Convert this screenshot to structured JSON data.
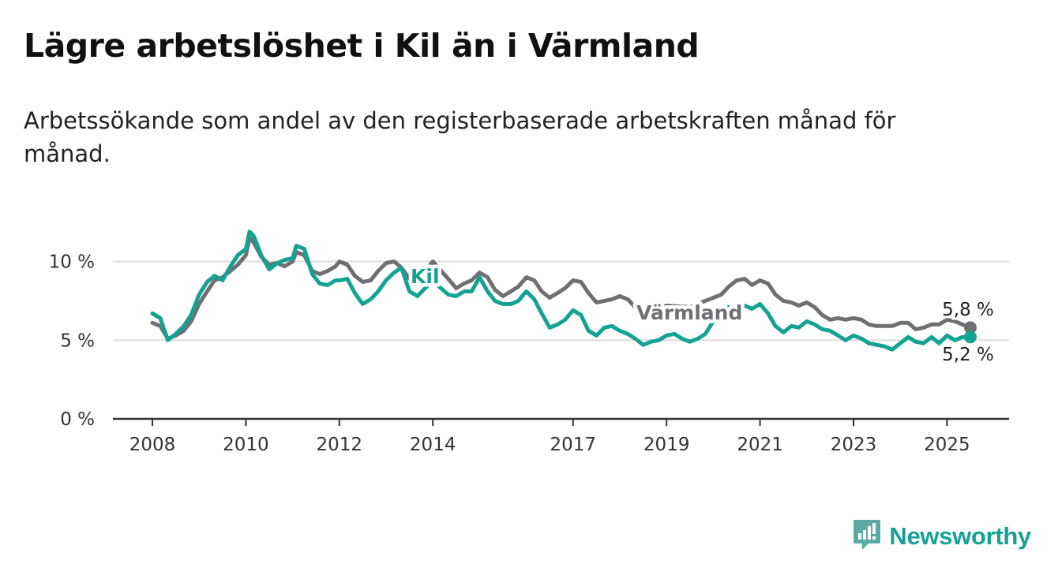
{
  "title": "Lägre arbetslöshet i Kil än i Värmland",
  "subtitle": "Arbetssökande som andel av den registerbaserade arbetskraften månad för månad.",
  "brand": {
    "name": "Newsworthy",
    "icon": "newsworthy-logo-icon",
    "color": "#17a196"
  },
  "colors": {
    "kil": "#14a393",
    "varmland": "#706f74",
    "grid": "#dddddd",
    "axis": "#333333"
  },
  "chart_data": {
    "type": "line",
    "title": "Lägre arbetslöshet i Kil än i Värmland",
    "subtitle": "Arbetssökande som andel av den registerbaserade arbetskraften månad för månad.",
    "xlabel": "",
    "ylabel": "",
    "xlim": [
      2008,
      2025.5
    ],
    "ylim": [
      0,
      10
    ],
    "y_ticks": [
      0,
      5,
      10
    ],
    "y_tick_labels": [
      "0 %",
      "5 %",
      "10 %"
    ],
    "x_ticks": [
      2008,
      2010,
      2012,
      2014,
      2017,
      2019,
      2021,
      2023,
      2025
    ],
    "x_tick_labels": [
      "2008",
      "2010",
      "2012",
      "2014",
      "2017",
      "2019",
      "2021",
      "2023",
      "2025"
    ],
    "grid": "horizontal",
    "legend": "inline labels",
    "series": [
      {
        "name": "Värmland",
        "end_label": "5,8 %",
        "points": [
          [
            2008.0,
            6.1
          ],
          [
            2008.17,
            5.9
          ],
          [
            2008.33,
            5.1
          ],
          [
            2008.5,
            5.3
          ],
          [
            2008.67,
            5.6
          ],
          [
            2008.83,
            6.2
          ],
          [
            2009.0,
            7.3
          ],
          [
            2009.17,
            8.1
          ],
          [
            2009.33,
            8.8
          ],
          [
            2009.5,
            9.0
          ],
          [
            2009.67,
            9.4
          ],
          [
            2009.83,
            9.8
          ],
          [
            2010.0,
            10.4
          ],
          [
            2010.08,
            11.5
          ],
          [
            2010.17,
            11.2
          ],
          [
            2010.33,
            10.3
          ],
          [
            2010.5,
            9.8
          ],
          [
            2010.67,
            9.9
          ],
          [
            2010.83,
            9.7
          ],
          [
            2011.0,
            10.0
          ],
          [
            2011.08,
            10.6
          ],
          [
            2011.25,
            10.4
          ],
          [
            2011.42,
            9.4
          ],
          [
            2011.58,
            9.2
          ],
          [
            2011.75,
            9.4
          ],
          [
            2011.92,
            9.7
          ],
          [
            2012.0,
            10.0
          ],
          [
            2012.17,
            9.8
          ],
          [
            2012.33,
            9.1
          ],
          [
            2012.5,
            8.7
          ],
          [
            2012.67,
            8.8
          ],
          [
            2012.83,
            9.4
          ],
          [
            2013.0,
            9.9
          ],
          [
            2013.17,
            10.0
          ],
          [
            2013.33,
            9.6
          ],
          [
            2013.5,
            8.9
          ],
          [
            2013.67,
            8.8
          ],
          [
            2014.0,
            10.0
          ],
          [
            2014.33,
            8.9
          ],
          [
            2014.5,
            8.3
          ],
          [
            2014.67,
            8.6
          ],
          [
            2014.83,
            8.8
          ],
          [
            2015.0,
            9.3
          ],
          [
            2015.17,
            9.0
          ],
          [
            2015.33,
            8.2
          ],
          [
            2015.5,
            7.8
          ],
          [
            2015.67,
            8.1
          ],
          [
            2015.83,
            8.4
          ],
          [
            2016.0,
            9.0
          ],
          [
            2016.17,
            8.8
          ],
          [
            2016.33,
            8.1
          ],
          [
            2016.5,
            7.7
          ],
          [
            2016.67,
            8.0
          ],
          [
            2016.83,
            8.3
          ],
          [
            2017.0,
            8.8
          ],
          [
            2017.17,
            8.7
          ],
          [
            2017.33,
            8.0
          ],
          [
            2017.5,
            7.4
          ],
          [
            2017.67,
            7.5
          ],
          [
            2017.83,
            7.6
          ],
          [
            2018.0,
            7.8
          ],
          [
            2018.17,
            7.6
          ],
          [
            2018.33,
            7.1
          ],
          [
            2018.5,
            6.6
          ],
          [
            2018.67,
            6.8
          ],
          [
            2018.83,
            7.0
          ],
          [
            2019.0,
            7.2
          ],
          [
            2019.5,
            7.1
          ],
          [
            2019.83,
            7.5
          ],
          [
            2020.0,
            7.7
          ],
          [
            2020.17,
            7.9
          ],
          [
            2020.33,
            8.4
          ],
          [
            2020.5,
            8.8
          ],
          [
            2020.67,
            8.9
          ],
          [
            2020.83,
            8.5
          ],
          [
            2021.0,
            8.8
          ],
          [
            2021.17,
            8.6
          ],
          [
            2021.33,
            7.9
          ],
          [
            2021.5,
            7.5
          ],
          [
            2021.67,
            7.4
          ],
          [
            2021.83,
            7.2
          ],
          [
            2022.0,
            7.4
          ],
          [
            2022.17,
            7.1
          ],
          [
            2022.33,
            6.6
          ],
          [
            2022.5,
            6.3
          ],
          [
            2022.67,
            6.4
          ],
          [
            2022.83,
            6.3
          ],
          [
            2023.0,
            6.4
          ],
          [
            2023.17,
            6.3
          ],
          [
            2023.33,
            6.0
          ],
          [
            2023.5,
            5.9
          ],
          [
            2023.67,
            5.9
          ],
          [
            2023.83,
            5.9
          ],
          [
            2024.0,
            6.1
          ],
          [
            2024.17,
            6.1
          ],
          [
            2024.33,
            5.7
          ],
          [
            2024.5,
            5.8
          ],
          [
            2024.67,
            6.0
          ],
          [
            2024.83,
            6.0
          ],
          [
            2025.0,
            6.3
          ],
          [
            2025.17,
            6.2
          ],
          [
            2025.33,
            6.0
          ],
          [
            2025.5,
            5.8
          ]
        ]
      },
      {
        "name": "Kil",
        "end_label": "5,2 %",
        "points": [
          [
            2008.0,
            6.7
          ],
          [
            2008.17,
            6.4
          ],
          [
            2008.33,
            5.0
          ],
          [
            2008.5,
            5.4
          ],
          [
            2008.67,
            5.9
          ],
          [
            2008.83,
            6.6
          ],
          [
            2009.0,
            7.9
          ],
          [
            2009.17,
            8.7
          ],
          [
            2009.33,
            9.1
          ],
          [
            2009.5,
            8.8
          ],
          [
            2009.67,
            9.7
          ],
          [
            2009.83,
            10.4
          ],
          [
            2010.0,
            10.8
          ],
          [
            2010.08,
            11.9
          ],
          [
            2010.17,
            11.6
          ],
          [
            2010.33,
            10.4
          ],
          [
            2010.5,
            9.5
          ],
          [
            2010.67,
            9.9
          ],
          [
            2010.83,
            10.1
          ],
          [
            2011.0,
            10.2
          ],
          [
            2011.08,
            11.0
          ],
          [
            2011.25,
            10.8
          ],
          [
            2011.42,
            9.2
          ],
          [
            2011.58,
            8.6
          ],
          [
            2011.75,
            8.5
          ],
          [
            2011.92,
            8.8
          ],
          [
            2012.0,
            8.8
          ],
          [
            2012.17,
            8.9
          ],
          [
            2012.33,
            8.0
          ],
          [
            2012.5,
            7.3
          ],
          [
            2012.67,
            7.6
          ],
          [
            2012.83,
            8.1
          ],
          [
            2013.0,
            8.8
          ],
          [
            2013.17,
            9.3
          ],
          [
            2013.33,
            9.6
          ],
          [
            2013.5,
            8.1
          ],
          [
            2013.67,
            7.8
          ],
          [
            2014.0,
            8.8
          ],
          [
            2014.17,
            8.3
          ],
          [
            2014.33,
            7.9
          ],
          [
            2014.5,
            7.8
          ],
          [
            2014.67,
            8.1
          ],
          [
            2014.83,
            8.1
          ],
          [
            2015.0,
            9.0
          ],
          [
            2015.17,
            8.1
          ],
          [
            2015.33,
            7.5
          ],
          [
            2015.5,
            7.3
          ],
          [
            2015.67,
            7.3
          ],
          [
            2015.83,
            7.5
          ],
          [
            2016.0,
            8.1
          ],
          [
            2016.17,
            7.6
          ],
          [
            2016.33,
            6.7
          ],
          [
            2016.5,
            5.8
          ],
          [
            2016.67,
            6.0
          ],
          [
            2016.83,
            6.3
          ],
          [
            2017.0,
            6.9
          ],
          [
            2017.17,
            6.6
          ],
          [
            2017.33,
            5.6
          ],
          [
            2017.5,
            5.3
          ],
          [
            2017.67,
            5.8
          ],
          [
            2017.83,
            5.9
          ],
          [
            2018.0,
            5.6
          ],
          [
            2018.17,
            5.4
          ],
          [
            2018.33,
            5.1
          ],
          [
            2018.5,
            4.7
          ],
          [
            2018.67,
            4.9
          ],
          [
            2018.83,
            5.0
          ],
          [
            2019.0,
            5.3
          ],
          [
            2019.17,
            5.4
          ],
          [
            2019.33,
            5.1
          ],
          [
            2019.5,
            4.9
          ],
          [
            2019.67,
            5.1
          ],
          [
            2019.83,
            5.4
          ],
          [
            2020.0,
            6.2
          ],
          [
            2020.17,
            6.8
          ],
          [
            2020.33,
            7.1
          ],
          [
            2020.5,
            7.0
          ],
          [
            2020.67,
            7.2
          ],
          [
            2020.83,
            7.0
          ],
          [
            2021.0,
            7.3
          ],
          [
            2021.17,
            6.7
          ],
          [
            2021.33,
            5.9
          ],
          [
            2021.5,
            5.5
          ],
          [
            2021.67,
            5.9
          ],
          [
            2021.83,
            5.8
          ],
          [
            2022.0,
            6.2
          ],
          [
            2022.17,
            6.0
          ],
          [
            2022.33,
            5.7
          ],
          [
            2022.5,
            5.6
          ],
          [
            2022.67,
            5.3
          ],
          [
            2022.83,
            5.0
          ],
          [
            2023.0,
            5.3
          ],
          [
            2023.17,
            5.1
          ],
          [
            2023.33,
            4.8
          ],
          [
            2023.5,
            4.7
          ],
          [
            2023.67,
            4.6
          ],
          [
            2023.83,
            4.4
          ],
          [
            2024.0,
            4.8
          ],
          [
            2024.17,
            5.2
          ],
          [
            2024.33,
            4.9
          ],
          [
            2024.5,
            4.8
          ],
          [
            2024.67,
            5.2
          ],
          [
            2024.83,
            4.8
          ],
          [
            2025.0,
            5.3
          ],
          [
            2025.17,
            5.0
          ],
          [
            2025.33,
            5.2
          ],
          [
            2025.5,
            5.2
          ]
        ]
      }
    ]
  }
}
